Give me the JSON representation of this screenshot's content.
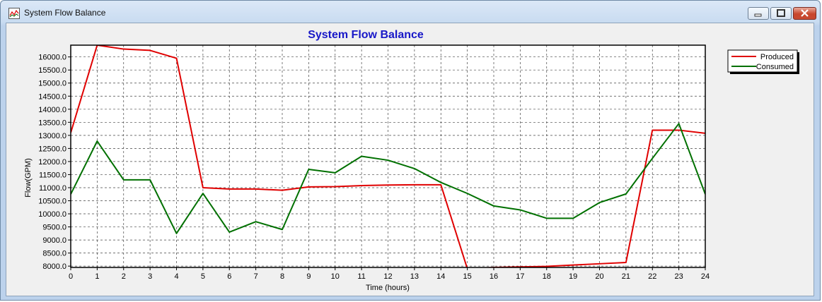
{
  "window": {
    "title": "System Flow Balance",
    "controls": {
      "minimize": "minimize",
      "maximize": "maximize",
      "close": "close"
    }
  },
  "chart_data": {
    "type": "line",
    "title": "System Flow Balance",
    "xlabel": "Time (hours)",
    "ylabel": "Flow(GPM)",
    "xlim": [
      0,
      24
    ],
    "ylim": [
      7950,
      16450
    ],
    "x": [
      0,
      1,
      2,
      3,
      4,
      5,
      6,
      7,
      8,
      9,
      10,
      11,
      12,
      13,
      14,
      15,
      16,
      17,
      18,
      19,
      20,
      21,
      22,
      23,
      24
    ],
    "x_ticks": [
      "0",
      "1",
      "2",
      "3",
      "4",
      "5",
      "6",
      "7",
      "8",
      "9",
      "10",
      "11",
      "12",
      "13",
      "14",
      "15",
      "16",
      "17",
      "18",
      "19",
      "20",
      "21",
      "22",
      "23",
      "24"
    ],
    "y_ticks": [
      8000,
      8500,
      9000,
      9500,
      10000,
      10500,
      11000,
      11500,
      12000,
      12500,
      13000,
      13500,
      14000,
      14500,
      15000,
      15500,
      16000
    ],
    "y_tick_labels": [
      "8000.0",
      "8500.0",
      "9000.0",
      "9500.0",
      "10000.0",
      "10500.0",
      "11000.0",
      "11500.0",
      "12000.0",
      "12500.0",
      "13000.0",
      "13500.0",
      "14000.0",
      "14500.0",
      "15000.0",
      "15500.0",
      "16000.0"
    ],
    "grid": true,
    "legend_position": "top-right",
    "series": [
      {
        "name": "Produced",
        "color": "#e00000",
        "values": [
          13100,
          16450,
          16300,
          16250,
          15950,
          11000,
          10950,
          10950,
          10900,
          11030,
          11040,
          11080,
          11100,
          11110,
          11110,
          7900,
          7950,
          7970,
          7990,
          8040,
          8090,
          8140,
          13200,
          13200,
          13080
        ]
      },
      {
        "name": "Consumed",
        "color": "#007000",
        "values": [
          10750,
          12780,
          11300,
          11300,
          9250,
          10780,
          9300,
          9700,
          9400,
          11700,
          11570,
          12200,
          12050,
          11730,
          11200,
          10780,
          10300,
          10150,
          9830,
          9830,
          10430,
          10760,
          12120,
          13450,
          10750
        ]
      }
    ]
  }
}
